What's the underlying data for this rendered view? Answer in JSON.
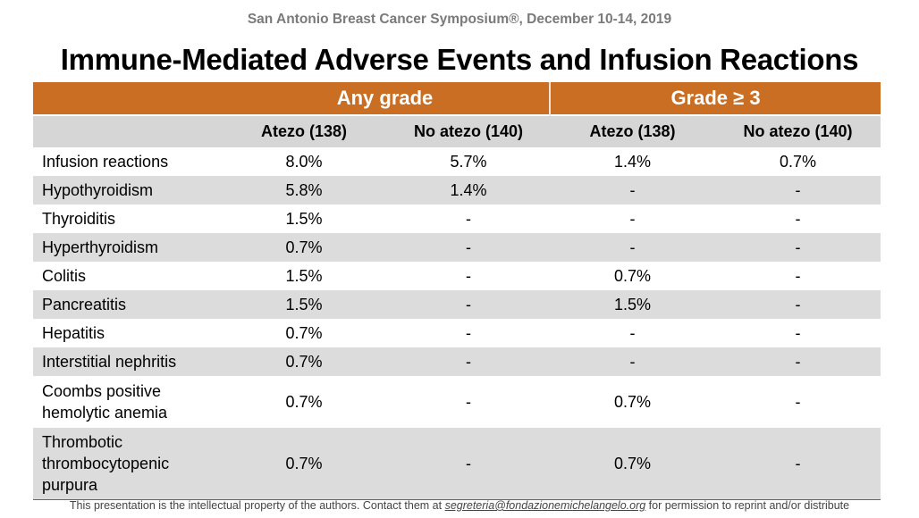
{
  "header": {
    "conference": "San Antonio Breast Cancer Symposium®, December 10-14, 2019",
    "title": "Immune-Mediated Adverse Events and Infusion Reactions"
  },
  "table": {
    "groups": [
      "Any grade",
      "Grade ≥ 3"
    ],
    "columns": [
      "Atezo (138)",
      "No atezo (140)",
      "Atezo (138)",
      "No atezo (140)"
    ],
    "rows": [
      {
        "label": "Infusion reactions",
        "values": [
          "8.0%",
          "5.7%",
          "1.4%",
          "0.7%"
        ]
      },
      {
        "label": "Hypothyroidism",
        "values": [
          "5.8%",
          "1.4%",
          "-",
          "-"
        ]
      },
      {
        "label": "Thyroiditis",
        "values": [
          "1.5%",
          "-",
          "-",
          "-"
        ]
      },
      {
        "label": "Hyperthyroidism",
        "values": [
          "0.7%",
          "-",
          "-",
          "-"
        ]
      },
      {
        "label": "Colitis",
        "values": [
          "1.5%",
          "-",
          "0.7%",
          "-"
        ]
      },
      {
        "label": "Pancreatitis",
        "values": [
          "1.5%",
          "-",
          "1.5%",
          "-"
        ]
      },
      {
        "label": "Hepatitis",
        "values": [
          "0.7%",
          "-",
          "-",
          "-"
        ]
      },
      {
        "label": "Interstitial nephritis",
        "values": [
          "0.7%",
          "-",
          "-",
          "-"
        ]
      },
      {
        "label": "Coombs positive hemolytic anemia",
        "label_lines": [
          "Coombs positive",
          "hemolytic anemia"
        ],
        "values": [
          "0.7%",
          "-",
          "0.7%",
          "-"
        ]
      },
      {
        "label": "Thrombotic thrombocytopenic purpura",
        "label_lines": [
          "Thrombotic",
          "thrombocytopenic",
          "purpura"
        ],
        "values": [
          "0.7%",
          "-",
          "0.7%",
          "-"
        ]
      }
    ]
  },
  "footer": {
    "prefix": "This presentation is the intellectual property of the authors. Contact them at ",
    "email": "segreteria@fondazionemichelangelo.org",
    "suffix": " for permission to reprint and/or distribute"
  },
  "colors": {
    "group_header": "#c96e23",
    "column_header": "#d6d6d6",
    "stripe": "#dcdcdc"
  }
}
